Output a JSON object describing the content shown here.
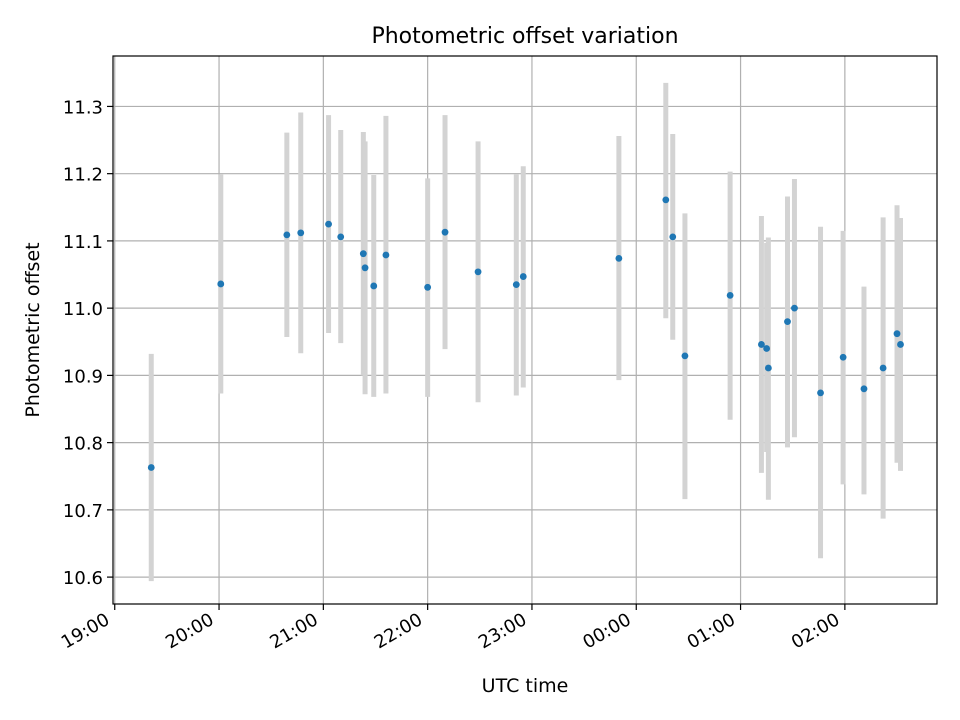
{
  "chart_data": {
    "type": "scatter",
    "title": "Photometric offset variation",
    "xlabel": "UTC time",
    "ylabel": "Photometric offset",
    "grid": true,
    "x_unit": "UTC time (HH:MM, spanning midnight)",
    "x_ticks": [
      "19:00",
      "20:00",
      "21:00",
      "22:00",
      "23:00",
      "00:00",
      "01:00",
      "02:00"
    ],
    "y_ticks": [
      "10.6",
      "10.7",
      "10.8",
      "10.9",
      "11.0",
      "11.1",
      "11.2",
      "11.3"
    ],
    "xlim": [
      "18:59",
      "02:53"
    ],
    "ylim": [
      10.56,
      11.375
    ],
    "marker_color": "#1f77b4",
    "errorbar_color": "#d3d3d3",
    "points": [
      {
        "x": "19:21",
        "y": 10.763,
        "ylow": 10.594,
        "yhigh": 10.932
      },
      {
        "x": "20:01",
        "y": 11.036,
        "ylow": 10.873,
        "yhigh": 11.199
      },
      {
        "x": "20:39",
        "y": 11.109,
        "ylow": 10.957,
        "yhigh": 11.261
      },
      {
        "x": "20:47",
        "y": 11.112,
        "ylow": 10.933,
        "yhigh": 11.291
      },
      {
        "x": "21:03",
        "y": 11.125,
        "ylow": 10.963,
        "yhigh": 11.287
      },
      {
        "x": "21:10",
        "y": 11.106,
        "ylow": 10.948,
        "yhigh": 11.265
      },
      {
        "x": "21:23",
        "y": 11.081,
        "ylow": 10.9,
        "yhigh": 11.262
      },
      {
        "x": "21:24",
        "y": 11.06,
        "ylow": 10.872,
        "yhigh": 11.248
      },
      {
        "x": "21:29",
        "y": 11.033,
        "ylow": 10.868,
        "yhigh": 11.198
      },
      {
        "x": "21:36",
        "y": 11.079,
        "ylow": 10.873,
        "yhigh": 11.286
      },
      {
        "x": "22:00",
        "y": 11.031,
        "ylow": 10.868,
        "yhigh": 11.193
      },
      {
        "x": "22:10",
        "y": 11.113,
        "ylow": 10.939,
        "yhigh": 11.287
      },
      {
        "x": "22:29",
        "y": 11.054,
        "ylow": 10.86,
        "yhigh": 11.248
      },
      {
        "x": "22:51",
        "y": 11.035,
        "ylow": 10.87,
        "yhigh": 11.199
      },
      {
        "x": "22:55",
        "y": 11.047,
        "ylow": 10.882,
        "yhigh": 11.211
      },
      {
        "x": "23:50",
        "y": 11.074,
        "ylow": 10.893,
        "yhigh": 11.256
      },
      {
        "x": "00:17",
        "y": 11.161,
        "ylow": 10.985,
        "yhigh": 11.335
      },
      {
        "x": "00:21",
        "y": 11.106,
        "ylow": 10.953,
        "yhigh": 11.259
      },
      {
        "x": "00:28",
        "y": 10.929,
        "ylow": 10.716,
        "yhigh": 11.141
      },
      {
        "x": "00:54",
        "y": 11.019,
        "ylow": 10.834,
        "yhigh": 11.203
      },
      {
        "x": "01:12",
        "y": 10.946,
        "ylow": 10.755,
        "yhigh": 11.137
      },
      {
        "x": "01:15",
        "y": 10.94,
        "ylow": 10.786,
        "yhigh": 11.097
      },
      {
        "x": "01:16",
        "y": 10.911,
        "ylow": 10.715,
        "yhigh": 11.105
      },
      {
        "x": "01:27",
        "y": 10.98,
        "ylow": 10.793,
        "yhigh": 11.166
      },
      {
        "x": "01:31",
        "y": 11.0,
        "ylow": 10.808,
        "yhigh": 11.192
      },
      {
        "x": "01:46",
        "y": 10.874,
        "ylow": 10.628,
        "yhigh": 11.121
      },
      {
        "x": "01:59",
        "y": 10.927,
        "ylow": 10.738,
        "yhigh": 11.115
      },
      {
        "x": "02:11",
        "y": 10.88,
        "ylow": 10.723,
        "yhigh": 11.032
      },
      {
        "x": "02:22",
        "y": 10.911,
        "ylow": 10.687,
        "yhigh": 11.135
      },
      {
        "x": "02:30",
        "y": 10.962,
        "ylow": 10.77,
        "yhigh": 11.153
      },
      {
        "x": "02:32",
        "y": 10.946,
        "ylow": 10.758,
        "yhigh": 11.134
      }
    ]
  }
}
